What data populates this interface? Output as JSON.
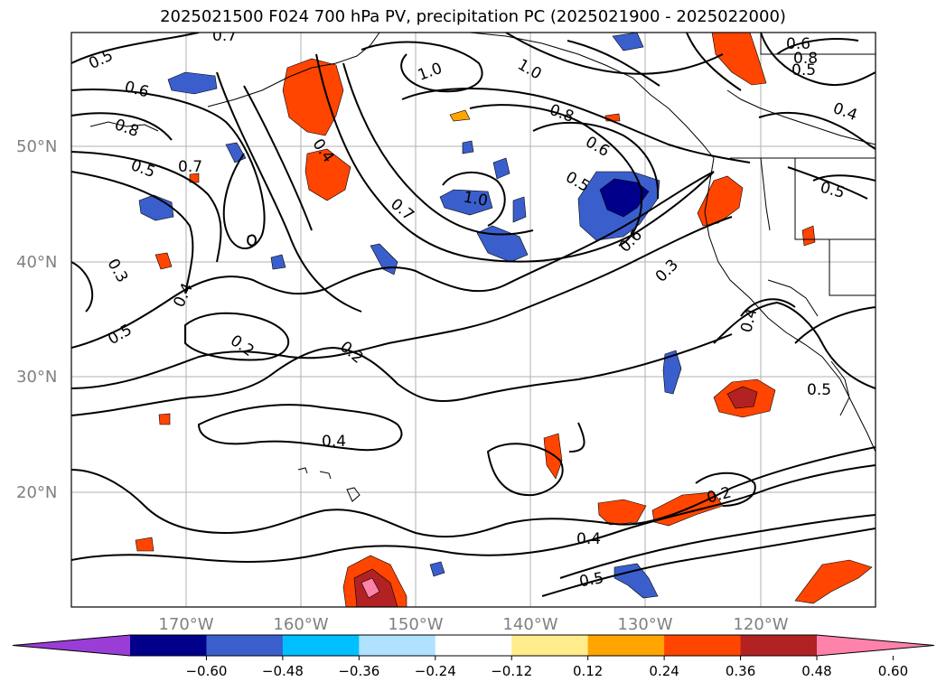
{
  "title": "2025021500 F024 700 hPa PV, precipitation PC (2025021900 - 2025022000)",
  "map": {
    "lat_labels": [
      "50°N",
      "40°N",
      "30°N",
      "20°N"
    ],
    "lon_labels": [
      "170°W",
      "160°W",
      "150°W",
      "140°W",
      "130°W",
      "120°W"
    ],
    "gridlines": true
  },
  "contour_labels": [
    "0.5",
    "0.7",
    "0.6",
    "0.8",
    "0.5",
    "0.7",
    "1.0",
    "1.0",
    "0.8",
    "0.6",
    "0.5",
    "1.0",
    "0.7",
    "0.4",
    "0.6",
    "0.3",
    "0.4",
    "0.3",
    "0.5",
    "0.2",
    "0.2",
    "0.4",
    "0.4",
    "0.2",
    "0.5",
    "0.4",
    "0.5",
    "0.6",
    "0.8",
    "0.5",
    "0.4"
  ],
  "colorbar": {
    "colors": [
      "#9a3dd6",
      "#00008b",
      "#3a5fcd",
      "#00bfff",
      "#b0e2ff",
      "#ffffff",
      "#ffec8b",
      "#ffa500",
      "#ff4500",
      "#b22222",
      "#ff82ab"
    ],
    "tick_labels": [
      "−0.60",
      "−0.48",
      "−0.36",
      "−0.24",
      "−0.12",
      "0.12",
      "0.24",
      "0.36",
      "0.48",
      "0.60"
    ]
  }
}
